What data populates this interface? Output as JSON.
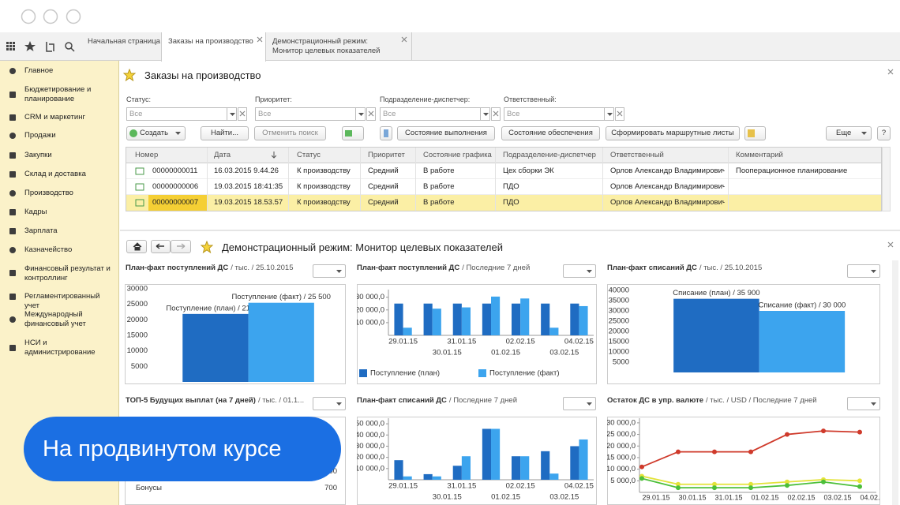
{
  "tabs": [
    "Начальная страница",
    "Заказы на производство",
    "Демонстрационный режим: Монитор целевых показателей"
  ],
  "sidebar": [
    "Главное",
    "Бюджетирование и планирование",
    "CRM и маркетинг",
    "Продажи",
    "Закупки",
    "Склад и доставка",
    "Производство",
    "Кадры",
    "Зарплата",
    "Казначейство",
    "Финансовый результат и контроллинг",
    "Регламентированный учет",
    "Международный финансовый учет",
    "НСИ и администрирование"
  ],
  "orders": {
    "title": "Заказы на производство",
    "filters": [
      {
        "label": "Статус:",
        "value": "Все"
      },
      {
        "label": "Приоритет:",
        "value": "Все"
      },
      {
        "label": "Подразделение-диспетчер:",
        "value": "Все"
      },
      {
        "label": "Ответственный:",
        "value": "Все"
      }
    ],
    "buttons": [
      "Создать",
      "Найти...",
      "Отменить поиск",
      "Состояние выполнения",
      "Состояние обеспечения",
      "Сформировать маршрутные листы",
      "Еще",
      "?"
    ],
    "columns": [
      "Номер",
      "Дата",
      "Статус",
      "Приоритет",
      "Состояние графика",
      "Подразделение-диспетчер",
      "Ответственный",
      "Комментарий"
    ],
    "rows": [
      [
        "00000000011",
        "16.03.2015 9.44.26",
        "К производству",
        "Средний",
        "В работе",
        "Цех сборки ЭК",
        "Орлов Александр Владимирович",
        "Пооперационное планирование"
      ],
      [
        "00000000006",
        "19.03.2015 18:41:35",
        "К производству",
        "Средний",
        "В работе",
        "ПДО",
        "Орлов Александр Владимирович"
      ],
      [
        "00000000007",
        "19.03.2015 18.53.57",
        "К производству",
        "Средний",
        "В работе",
        "ПДО",
        "Орлов Александр Владимирович"
      ]
    ]
  },
  "monitor": {
    "title": "Демонстрационный режим: Монитор целевых показателей"
  },
  "top5": {
    "title": "ТОП-5 Будущих выплат (на 7 дней)",
    "subtitle": "/ тыс. / 01.1...",
    "rows": [
      {
        "value": 600
      },
      {
        "label": "Бонусы",
        "value": 700
      }
    ]
  },
  "badge": "На продвинутом курсе",
  "chart_data": [
    {
      "type": "bar",
      "title": "План-факт поступлений ДС",
      "subtitle": "/ тыс. / 25.10.2015",
      "values": [
        21900,
        25500
      ],
      "value_labels": [
        "Поступление (план) / 21 900",
        "Поступление (факт) / 25 500"
      ],
      "colors": [
        "#1f6cc2",
        "#3ca4ee"
      ],
      "ylim": [
        0,
        30000
      ],
      "yticks": [
        5000,
        10000,
        15000,
        20000,
        25000,
        30000
      ]
    },
    {
      "type": "grouped_bar",
      "title": "План-факт поступлений ДС",
      "subtitle": "/ Последние 7 дней",
      "categories": [
        "29.01.15",
        "30.01.15",
        "31.01.15",
        "01.02.15",
        "02.02.15",
        "03.02.15",
        "04.02.15"
      ],
      "series": [
        {
          "name": "Поступление (план)",
          "color": "#1f6cc2",
          "values": [
            25000,
            25000,
            25000,
            25000,
            25000,
            25000,
            25000
          ]
        },
        {
          "name": "Поступление (факт)",
          "color": "#3ca4ee",
          "values": [
            6000,
            21000,
            22000,
            30500,
            29000,
            6000,
            23000
          ]
        }
      ],
      "legend": "bottom",
      "ylim": [
        0,
        36000
      ],
      "yticks": [
        {
          "value": 10000,
          "label": "10 000,0"
        },
        {
          "value": 20000,
          "label": "20 000,0"
        },
        {
          "value": 30000,
          "label": "30 000,0"
        }
      ]
    },
    {
      "type": "bar",
      "title": "План-факт списаний ДС",
      "subtitle": "/ тыс. / 25.10.2015",
      "values": [
        35900,
        30000
      ],
      "value_labels": [
        "Списание (план) / 35 900",
        "Списание (факт) / 30 000"
      ],
      "colors": [
        "#1f6cc2",
        "#3ca4ee"
      ],
      "ylim": [
        0,
        40000
      ],
      "yticks": [
        5000,
        10000,
        15000,
        20000,
        25000,
        30000,
        35000,
        40000
      ]
    },
    {
      "type": "grouped_bar",
      "title": "План-факт списаний ДС",
      "subtitle": "/ Последние 7 дней",
      "categories": [
        "29.01.15",
        "30.01.15",
        "31.01.15",
        "01.02.15",
        "02.02.15",
        "03.02.15",
        "04.02.15"
      ],
      "series": [
        {
          "color": "#1f6cc2",
          "values": [
            17500,
            5000,
            12500,
            45500,
            21000,
            25500,
            30000
          ]
        },
        {
          "color": "#3ca4ee",
          "values": [
            3000,
            3000,
            21000,
            45500,
            21000,
            5500,
            36000
          ]
        }
      ],
      "ylim": [
        0,
        55000
      ],
      "yticks": [
        {
          "value": 10000,
          "label": "10 000,0"
        },
        {
          "value": 20000,
          "label": "20 000,0"
        },
        {
          "value": 30000,
          "label": "30 000,0"
        },
        {
          "value": 40000,
          "label": "40 000,0"
        },
        {
          "value": 50000,
          "label": "50 000,0"
        }
      ]
    },
    {
      "type": "line",
      "title": "Остаток ДС в упр. валюте",
      "subtitle": "/ тыс. / USD / Последние 7 дней",
      "categories": [
        "29.01.15",
        "30.01.15",
        "31.01.15",
        "01.02.15",
        "02.02.15",
        "03.02.15",
        "04.02.15"
      ],
      "series": [
        {
          "color": "#cf3a2b",
          "values": [
            11000,
            17500,
            17500,
            17500,
            25000,
            26500,
            26000
          ]
        },
        {
          "color": "#e3e33a",
          "values": [
            7000,
            3500,
            3500,
            3500,
            4500,
            5500,
            5000
          ]
        },
        {
          "color": "#4cbf3a",
          "values": [
            6000,
            2000,
            2000,
            2000,
            3000,
            4500,
            2500
          ]
        }
      ],
      "ylim": [
        0,
        32000
      ],
      "yticks": [
        {
          "value": 5000,
          "label": "5 000,0"
        },
        {
          "value": 10000,
          "label": "10 000,0"
        },
        {
          "value": 15000,
          "label": "15 000,0"
        },
        {
          "value": 20000,
          "label": "20 000,0"
        },
        {
          "value": 25000,
          "label": "25 000,0"
        },
        {
          "value": 30000,
          "label": "30 000,0"
        }
      ]
    }
  ]
}
